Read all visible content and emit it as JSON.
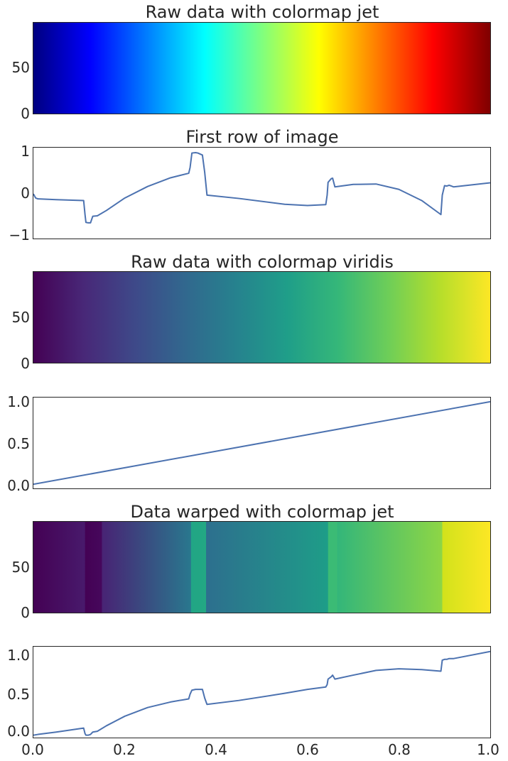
{
  "chart_data": [
    {
      "type": "heatmap",
      "title": "Raw data with colormap jet",
      "colormap": "jet",
      "ylim": [
        0,
        100
      ],
      "yticks": [
        "0",
        "50"
      ],
      "gradient_stops": [
        "#00007f",
        "#0000ff",
        "#007fff",
        "#00ffff",
        "#7fff7f",
        "#ffff00",
        "#ff7f00",
        "#ff0000",
        "#7f0000"
      ]
    },
    {
      "type": "line",
      "title": "First row of image",
      "ylim": [
        -1.1,
        1.1
      ],
      "xlim": [
        0,
        1
      ],
      "yticks": [
        "1",
        "0",
        "−1"
      ],
      "line_color": "#4c72b0",
      "x": [
        0.0,
        0.005,
        0.01,
        0.05,
        0.11,
        0.113,
        0.115,
        0.12,
        0.125,
        0.13,
        0.14,
        0.16,
        0.2,
        0.25,
        0.3,
        0.34,
        0.343,
        0.347,
        0.355,
        0.36,
        0.37,
        0.375,
        0.38,
        0.45,
        0.55,
        0.6,
        0.64,
        0.643,
        0.645,
        0.652,
        0.655,
        0.66,
        0.7,
        0.75,
        0.8,
        0.85,
        0.892,
        0.895,
        0.9,
        0.905,
        0.91,
        0.92,
        1.0
      ],
      "y": [
        -0.02,
        -0.12,
        -0.14,
        -0.16,
        -0.18,
        -0.52,
        -0.71,
        -0.72,
        -0.72,
        -0.56,
        -0.55,
        -0.42,
        -0.12,
        0.16,
        0.37,
        0.48,
        0.62,
        0.97,
        0.98,
        0.97,
        0.92,
        0.5,
        -0.05,
        -0.13,
        -0.27,
        -0.3,
        -0.28,
        -0.05,
        0.26,
        0.35,
        0.36,
        0.15,
        0.21,
        0.22,
        0.09,
        -0.18,
        -0.52,
        -0.05,
        0.18,
        0.17,
        0.19,
        0.15,
        0.25
      ]
    },
    {
      "type": "heatmap",
      "title": "Raw data with colormap viridis",
      "colormap": "viridis",
      "ylim": [
        0,
        100
      ],
      "yticks": [
        "0",
        "50"
      ],
      "gradient_stops": [
        "#440154",
        "#482878",
        "#3e4989",
        "#31688e",
        "#26828e",
        "#1f9e89",
        "#35b779",
        "#6ece58",
        "#b5de2b",
        "#fde725"
      ]
    },
    {
      "type": "line",
      "title": "",
      "ylim": [
        -0.05,
        1.05
      ],
      "xlim": [
        0,
        1
      ],
      "yticks": [
        "1.0",
        "0.5",
        "0.0"
      ],
      "line_color": "#4c72b0",
      "x": [
        0,
        1
      ],
      "y": [
        0.0,
        1.0
      ]
    },
    {
      "type": "heatmap",
      "title": "Data warped with colormap jet",
      "colormap": "viridis",
      "ylim": [
        0,
        100
      ],
      "yticks": [
        "0",
        "50"
      ],
      "segments": [
        {
          "x0": 0.0,
          "x1": 0.113,
          "c0": "#440154",
          "c1": "#481a6c"
        },
        {
          "x0": 0.113,
          "x1": 0.15,
          "c0": "#440154",
          "c1": "#46085c"
        },
        {
          "x0": 0.15,
          "x1": 0.345,
          "c0": "#482374",
          "c1": "#29788e"
        },
        {
          "x0": 0.345,
          "x1": 0.378,
          "c0": "#21a585",
          "c1": "#23a883"
        },
        {
          "x0": 0.378,
          "x1": 0.645,
          "c0": "#2d6f8e",
          "c1": "#1e9d88"
        },
        {
          "x0": 0.645,
          "x1": 0.665,
          "c0": "#3bbb75",
          "c1": "#3bbb75"
        },
        {
          "x0": 0.665,
          "x1": 0.895,
          "c0": "#33b67a",
          "c1": "#8ed645"
        },
        {
          "x0": 0.895,
          "x1": 1.0,
          "c0": "#d2e21b",
          "c1": "#fde725"
        }
      ]
    },
    {
      "type": "line",
      "title": "",
      "ylim": [
        -0.05,
        1.1
      ],
      "xlim": [
        0,
        1
      ],
      "yticks": [
        "1.0",
        "0.5",
        "0.0"
      ],
      "xticks": [
        "0.0",
        "0.2",
        "0.4",
        "0.6",
        "0.8",
        "1.0"
      ],
      "line_color": "#4c72b0",
      "x": [
        0.0,
        0.01,
        0.05,
        0.11,
        0.113,
        0.115,
        0.12,
        0.125,
        0.13,
        0.14,
        0.16,
        0.2,
        0.25,
        0.3,
        0.34,
        0.343,
        0.347,
        0.355,
        0.36,
        0.37,
        0.375,
        0.38,
        0.45,
        0.55,
        0.6,
        0.64,
        0.643,
        0.645,
        0.652,
        0.655,
        0.66,
        0.7,
        0.75,
        0.8,
        0.85,
        0.892,
        0.895,
        0.9,
        0.905,
        0.91,
        0.92,
        1.0
      ],
      "y": [
        -0.02,
        -0.01,
        0.02,
        0.07,
        0.0,
        -0.02,
        -0.02,
        -0.01,
        0.02,
        0.03,
        0.1,
        0.22,
        0.33,
        0.4,
        0.44,
        0.5,
        0.55,
        0.56,
        0.56,
        0.56,
        0.45,
        0.37,
        0.42,
        0.51,
        0.56,
        0.59,
        0.62,
        0.69,
        0.72,
        0.74,
        0.69,
        0.74,
        0.8,
        0.82,
        0.81,
        0.79,
        0.93,
        0.94,
        0.94,
        0.95,
        0.95,
        1.04
      ]
    }
  ]
}
